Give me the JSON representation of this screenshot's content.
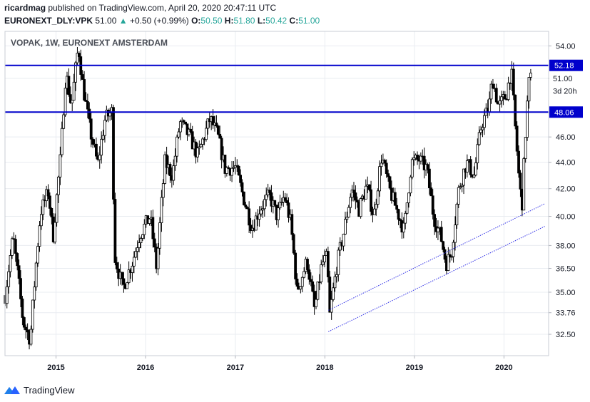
{
  "header": {
    "publisher": "ricardmag",
    "published_text": "published on TradingView.com, April 20, 2020 20:47:11 UTC",
    "symbol": "EURONEXT_DLY:VPK",
    "last": "51.00",
    "change": "+0.50 (+0.99%)",
    "o_label": "O:",
    "o_value": "50.50",
    "h_label": "H:",
    "h_value": "51.80",
    "l_label": "L:",
    "l_value": "50.42",
    "c_label": "C:",
    "c_value": "51.00"
  },
  "footer": {
    "brand": "TradingView"
  },
  "colors": {
    "grid": "#e9ecf1",
    "candle": "#000000",
    "level_line": "#0000cc",
    "channel": "#2d2de6",
    "axis_text": "#131722"
  },
  "chart_data": {
    "type": "candlestick",
    "title": "VOPAK, 1W, EURONEXT AMSTERDAM",
    "interval": "1W",
    "y_scale": "log",
    "ylim": [
      31.3,
      55.4
    ],
    "y_ticks": [
      "54.00",
      "51.00",
      "48.00",
      "46.00",
      "44.00",
      "42.00",
      "40.00",
      "38.00",
      "36.50",
      "35.00",
      "33.76",
      "32.50"
    ],
    "x_ticks": [
      {
        "label": "2015",
        "date": "2015-01-01"
      },
      {
        "label": "2016",
        "date": "2016-01-01"
      },
      {
        "label": "2017",
        "date": "2017-01-01"
      },
      {
        "label": "2018",
        "date": "2018-01-01"
      },
      {
        "label": "2019",
        "date": "2019-01-01"
      },
      {
        "label": "2020",
        "date": "2020-01-01"
      }
    ],
    "x_range": [
      "2014-06-07",
      "2020-07-01"
    ],
    "horizontal_levels": [
      {
        "value": 52.18,
        "label": "52.18"
      },
      {
        "value": 48.06,
        "label": "48.06"
      }
    ],
    "price_labels": [
      {
        "value": 51.0,
        "label": "51.00"
      },
      {
        "value": 49.9,
        "label": "3d 20h"
      }
    ],
    "channel_lines": [
      {
        "from": {
          "date": "2018-01-15",
          "value": 33.9
        },
        "to": {
          "date": "2020-06-15",
          "value": 40.9
        }
      },
      {
        "from": {
          "date": "2018-01-15",
          "value": 32.65
        },
        "to": {
          "date": "2020-06-15",
          "value": 39.3
        }
      }
    ],
    "close_path": [
      [
        "2014-06-08",
        34.8
      ],
      [
        "2014-07-10",
        38.6
      ],
      [
        "2014-08-20",
        33.2
      ],
      [
        "2014-09-18",
        32.2
      ],
      [
        "2014-10-30",
        40.3
      ],
      [
        "2014-12-01",
        41.8
      ],
      [
        "2014-12-20",
        38.5
      ],
      [
        "2015-01-20",
        44.5
      ],
      [
        "2015-02-10",
        51.5
      ],
      [
        "2015-03-05",
        48.5
      ],
      [
        "2015-04-02",
        54.0
      ],
      [
        "2015-04-20",
        50.4
      ],
      [
        "2015-05-20",
        46.5
      ],
      [
        "2015-06-20",
        43.8
      ],
      [
        "2015-07-20",
        47.5
      ],
      [
        "2015-08-20",
        48.2
      ],
      [
        "2015-08-25",
        37.5
      ],
      [
        "2015-09-30",
        35.2
      ],
      [
        "2015-11-10",
        37.0
      ],
      [
        "2015-12-10",
        38.8
      ],
      [
        "2016-01-20",
        40.0
      ],
      [
        "2016-02-15",
        36.5
      ],
      [
        "2016-03-20",
        44.0
      ],
      [
        "2016-04-20",
        43.0
      ],
      [
        "2016-05-20",
        47.2
      ],
      [
        "2016-06-30",
        46.0
      ],
      [
        "2016-08-01",
        44.5
      ],
      [
        "2016-09-20",
        47.5
      ],
      [
        "2016-10-20",
        46.2
      ],
      [
        "2016-11-20",
        43.5
      ],
      [
        "2017-01-01",
        43.6
      ],
      [
        "2017-02-01",
        41.5
      ],
      [
        "2017-03-10",
        39.2
      ],
      [
        "2017-04-10",
        40.5
      ],
      [
        "2017-05-20",
        41.5
      ],
      [
        "2017-06-20",
        40.0
      ],
      [
        "2017-07-20",
        41.5
      ],
      [
        "2017-08-15",
        39.5
      ],
      [
        "2017-09-10",
        35.0
      ],
      [
        "2017-10-20",
        37.0
      ],
      [
        "2017-11-20",
        33.9
      ],
      [
        "2017-12-20",
        36.8
      ],
      [
        "2018-01-10",
        37.2
      ],
      [
        "2018-01-20",
        33.5
      ],
      [
        "2018-02-20",
        36.8
      ],
      [
        "2018-03-20",
        39.0
      ],
      [
        "2018-04-20",
        42.0
      ],
      [
        "2018-05-20",
        40.5
      ],
      [
        "2018-06-20",
        42.2
      ],
      [
        "2018-07-20",
        40.0
      ],
      [
        "2018-08-20",
        44.5
      ],
      [
        "2018-09-20",
        42.0
      ],
      [
        "2018-10-20",
        40.5
      ],
      [
        "2018-11-20",
        39.0
      ],
      [
        "2018-12-20",
        44.0
      ],
      [
        "2019-01-20",
        44.2
      ],
      [
        "2019-02-20",
        43.5
      ],
      [
        "2019-03-20",
        40.0
      ],
      [
        "2019-04-20",
        38.5
      ],
      [
        "2019-05-10",
        36.8
      ],
      [
        "2019-06-01",
        37.5
      ],
      [
        "2019-07-01",
        42.0
      ],
      [
        "2019-08-01",
        44.0
      ],
      [
        "2019-09-01",
        43.0
      ],
      [
        "2019-10-01",
        47.0
      ],
      [
        "2019-11-01",
        48.5
      ],
      [
        "2019-11-15",
        51.0
      ],
      [
        "2019-12-10",
        48.5
      ],
      [
        "2020-01-10",
        49.5
      ],
      [
        "2020-01-31",
        51.8
      ],
      [
        "2020-02-15",
        47.0
      ],
      [
        "2020-03-05",
        42.0
      ],
      [
        "2020-03-15",
        41.0
      ],
      [
        "2020-03-28",
        46.0
      ],
      [
        "2020-04-10",
        50.5
      ],
      [
        "2020-04-20",
        51.0
      ]
    ]
  }
}
